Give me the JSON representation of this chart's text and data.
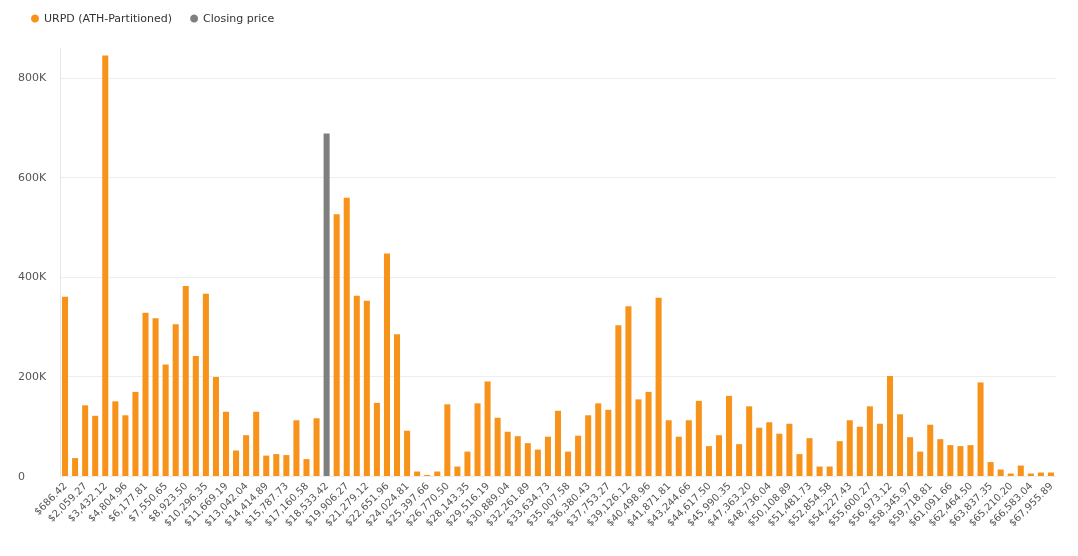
{
  "chart_data": {
    "type": "bar",
    "categories": [
      "$686.42",
      null,
      "$2,059.27",
      null,
      "$3,432.12",
      null,
      "$4,804.96",
      null,
      "$6,177.81",
      null,
      "$7,550.65",
      null,
      "$8,923.50",
      null,
      "$10,296.35",
      null,
      "$11,669.19",
      null,
      "$13,042.04",
      null,
      "$14,414.89",
      null,
      "$15,787.73",
      null,
      "$17,160.58",
      null,
      "$18,533.42",
      null,
      "$19,906.27",
      null,
      "$21,279.12",
      null,
      "$22,651.96",
      null,
      "$24,024.81",
      null,
      "$25,397.66",
      null,
      "$26,770.50",
      null,
      "$28,143.35",
      null,
      "$29,516.19",
      null,
      "$30,889.04",
      null,
      "$32,261.89",
      null,
      "$33,634.73",
      null,
      "$35,007.58",
      null,
      "$36,380.43",
      null,
      "$37,753.27",
      null,
      "$39,126.12",
      null,
      "$40,498.96",
      null,
      "$41,871.81",
      null,
      "$43,244.66",
      null,
      "$44,617.50",
      null,
      "$45,990.35",
      null,
      "$47,363.20",
      null,
      "$48,736.04",
      null,
      "$50,108.89",
      null,
      "$51,481.73",
      null,
      "$52,854.58",
      null,
      "$54,227.43",
      null,
      "$55,600.27",
      null,
      "$56,973.12",
      null,
      "$58,345.97",
      null,
      "$59,718.81",
      null,
      "$61,091.66",
      null,
      "$62,464.50",
      null,
      "$63,837.35",
      null,
      "$65,210.20",
      null,
      "$66,583.04",
      null,
      "$67,955.89"
    ],
    "series": [
      {
        "name": "URPD (ATH-Partitioned)",
        "color": "#f7931a",
        "values": [
          360000,
          36000,
          142000,
          121000,
          845000,
          150000,
          122000,
          169000,
          328000,
          317000,
          224000,
          305000,
          382000,
          241000,
          366000,
          199000,
          129000,
          51000,
          82000,
          129000,
          41000,
          44000,
          42000,
          112000,
          34000,
          116000,
          null,
          526000,
          559000,
          362000,
          352000,
          147000,
          447000,
          285000,
          91000,
          9000,
          2000,
          9000,
          144000,
          19000,
          49000,
          146000,
          190000,
          117000,
          89000,
          80000,
          66000,
          53000,
          79000,
          131000,
          49000,
          81000,
          122000,
          146000,
          133000,
          303000,
          341000,
          154000,
          169000,
          358000,
          112000,
          79000,
          112000,
          151000,
          60000,
          82000,
          161000,
          64000,
          140000,
          97000,
          108000,
          85000,
          105000,
          44000,
          76000,
          19000,
          19000,
          70000,
          112000,
          99000,
          140000,
          105000,
          201000,
          124000,
          78000,
          49000,
          103000,
          74000,
          62000,
          60000,
          62000,
          188000,
          28000,
          13000,
          5000,
          21000,
          5000,
          7000,
          7000
        ]
      },
      {
        "name": "Closing price",
        "color": "#7f7f7f",
        "values": [
          null,
          null,
          null,
          null,
          null,
          null,
          null,
          null,
          null,
          null,
          null,
          null,
          null,
          null,
          null,
          null,
          null,
          null,
          null,
          null,
          null,
          null,
          null,
          null,
          null,
          null,
          688000,
          null,
          null,
          null,
          null,
          null,
          null,
          null,
          null,
          null,
          null,
          null,
          null,
          null,
          null,
          null,
          null,
          null,
          null,
          null,
          null,
          null,
          null,
          null,
          null,
          null,
          null,
          null,
          null,
          null,
          null,
          null,
          null,
          null,
          null,
          null,
          null,
          null,
          null,
          null,
          null,
          null,
          null,
          null,
          null,
          null,
          null,
          null,
          null,
          null,
          null,
          null,
          null,
          null,
          null,
          null,
          null,
          null,
          null,
          null,
          null,
          null,
          null,
          null,
          null,
          null,
          null,
          null,
          null,
          null,
          null,
          null,
          null
        ]
      }
    ],
    "ylim": [
      0,
      860000
    ],
    "yticks": [
      {
        "value": 0,
        "label": "0"
      },
      {
        "value": 200000,
        "label": "200K"
      },
      {
        "value": 400000,
        "label": "400K"
      },
      {
        "value": 600000,
        "label": "600K"
      },
      {
        "value": 800000,
        "label": "800K"
      }
    ],
    "grid": "y",
    "legend": "top left"
  }
}
